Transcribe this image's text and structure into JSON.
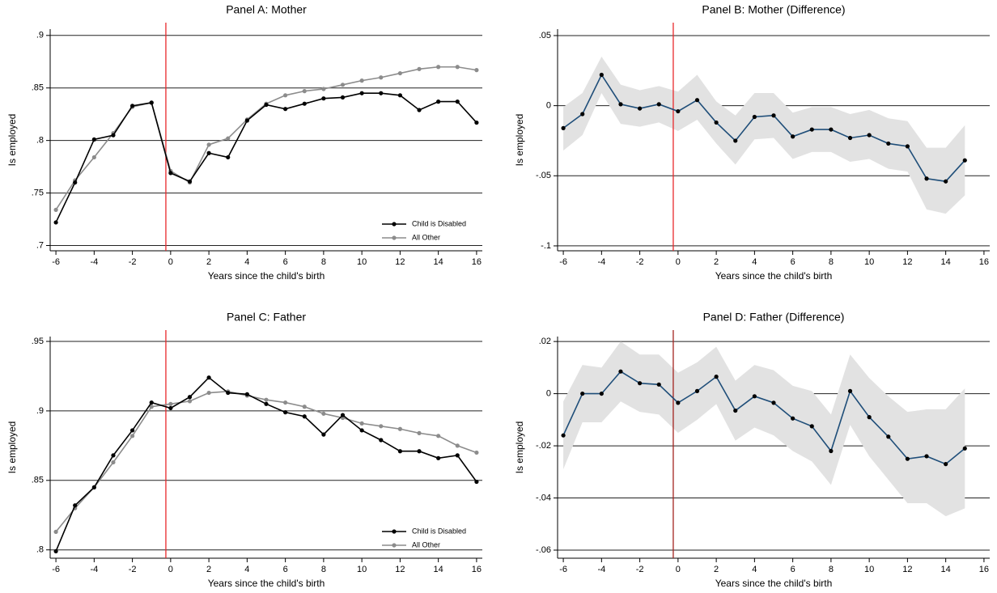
{
  "chart_data": [
    {
      "type": "line",
      "title": "Panel A: Mother",
      "xlabel": "Years since the child's birth",
      "ylabel": "Is employed",
      "x": [
        -6,
        -5,
        -4,
        -3,
        -2,
        -1,
        0,
        1,
        2,
        3,
        4,
        5,
        6,
        7,
        8,
        9,
        10,
        11,
        12,
        13,
        14,
        15,
        16
      ],
      "series": [
        {
          "name": "Child is Disabled",
          "color": "#000000",
          "values": [
            0.722,
            0.76,
            0.801,
            0.805,
            0.833,
            0.836,
            0.769,
            0.761,
            0.788,
            0.784,
            0.819,
            0.834,
            0.83,
            0.835,
            0.84,
            0.841,
            0.845,
            0.845,
            0.843,
            0.829,
            0.837,
            0.837,
            0.817
          ]
        },
        {
          "name": "All Other",
          "color": "#8c8c8c",
          "values": [
            0.734,
            0.762,
            0.784,
            0.807,
            0.832,
            0.836,
            0.771,
            0.76,
            0.796,
            0.802,
            0.82,
            0.835,
            0.843,
            0.847,
            0.849,
            0.853,
            0.857,
            0.86,
            0.864,
            0.868,
            0.87,
            0.87,
            0.867
          ]
        }
      ],
      "xlim": [
        -6.3,
        16.3
      ],
      "xticks": [
        -6,
        -4,
        -2,
        0,
        2,
        4,
        6,
        8,
        10,
        12,
        14,
        16
      ],
      "ylim": [
        0.695,
        0.906
      ],
      "yticks": [
        {
          "value": 0.7,
          "label": ".7"
        },
        {
          "value": 0.75,
          "label": ".75"
        },
        {
          "value": 0.8,
          "label": ".8"
        },
        {
          "value": 0.85,
          "label": ".85"
        },
        {
          "value": 0.9,
          "label": ".9"
        }
      ],
      "vline": -0.25,
      "vline_color": "#e8282b",
      "grid": true,
      "legend": "lower-right"
    },
    {
      "type": "line",
      "title": "Panel B: Mother (Difference)",
      "xlabel": "Years since the child's birth",
      "ylabel": "Is employed",
      "x": [
        -6,
        -5,
        -4,
        -3,
        -2,
        -1,
        0,
        1,
        2,
        3,
        4,
        5,
        6,
        7,
        8,
        9,
        10,
        11,
        12,
        13,
        14,
        15
      ],
      "values": [
        -0.016,
        -0.006,
        0.022,
        0.001,
        -0.002,
        0.001,
        -0.004,
        0.004,
        -0.012,
        -0.025,
        -0.008,
        -0.007,
        -0.022,
        -0.017,
        -0.017,
        -0.023,
        -0.021,
        -0.027,
        -0.029,
        -0.052,
        -0.054,
        -0.039
      ],
      "lower": [
        -0.032,
        -0.021,
        0.009,
        -0.013,
        -0.015,
        -0.012,
        -0.018,
        -0.01,
        -0.027,
        -0.042,
        -0.024,
        -0.023,
        -0.038,
        -0.033,
        -0.033,
        -0.04,
        -0.038,
        -0.045,
        -0.047,
        -0.074,
        -0.077,
        -0.064
      ],
      "upper": [
        -0.001,
        0.009,
        0.035,
        0.015,
        0.011,
        0.014,
        0.01,
        0.022,
        0.003,
        -0.007,
        0.009,
        0.009,
        -0.005,
        -0.001,
        -0.001,
        -0.006,
        -0.003,
        -0.009,
        -0.011,
        -0.03,
        -0.03,
        -0.014
      ],
      "color": "#1f4e79",
      "band_color": "#e2e2e2",
      "xlim": [
        -6.3,
        16.3
      ],
      "xticks": [
        -6,
        -4,
        -2,
        0,
        2,
        4,
        6,
        8,
        10,
        12,
        14,
        16
      ],
      "ylim": [
        -0.1035,
        0.0546
      ],
      "yticks": [
        {
          "value": -0.1,
          "label": "-.1"
        },
        {
          "value": -0.05,
          "label": "-.05"
        },
        0,
        {
          "value": 0.05,
          "label": ".05"
        }
      ],
      "vline": -0.25,
      "vline_color": "#e8282b",
      "grid": true
    },
    {
      "type": "line",
      "title": "Panel C: Father",
      "xlabel": "Years since the child's birth",
      "ylabel": "Is employed",
      "x": [
        -6,
        -5,
        -4,
        -3,
        -2,
        -1,
        0,
        1,
        2,
        3,
        4,
        5,
        6,
        7,
        8,
        9,
        10,
        11,
        12,
        13,
        14,
        15,
        16
      ],
      "series": [
        {
          "name": "Child is Disabled",
          "color": "#000000",
          "values": [
            0.799,
            0.832,
            0.845,
            0.868,
            0.886,
            0.906,
            0.902,
            0.91,
            0.924,
            0.913,
            0.912,
            0.905,
            0.899,
            0.896,
            0.883,
            0.897,
            0.886,
            0.879,
            0.871,
            0.871,
            0.866,
            0.868,
            0.849
          ]
        },
        {
          "name": "All Other",
          "color": "#8c8c8c",
          "values": [
            0.813,
            0.83,
            0.845,
            0.863,
            0.882,
            0.903,
            0.905,
            0.907,
            0.913,
            0.914,
            0.911,
            0.908,
            0.906,
            0.903,
            0.898,
            0.895,
            0.891,
            0.889,
            0.887,
            0.884,
            0.882,
            0.875,
            0.87
          ]
        }
      ],
      "xlim": [
        -6.3,
        16.3
      ],
      "xticks": [
        -6,
        -4,
        -2,
        0,
        2,
        4,
        6,
        8,
        10,
        12,
        14,
        16
      ],
      "ylim": [
        0.794,
        0.9535
      ],
      "yticks": [
        {
          "value": 0.8,
          "label": ".8"
        },
        {
          "value": 0.85,
          "label": ".85"
        },
        {
          "value": 0.9,
          "label": ".9"
        },
        {
          "value": 0.95,
          "label": ".95"
        }
      ],
      "vline": -0.25,
      "vline_color": "#e8282b",
      "grid": true,
      "legend": "lower-right"
    },
    {
      "type": "line",
      "title": "Panel D: Father (Difference)",
      "xlabel": "Years since the child's birth",
      "ylabel": "Is employed",
      "x": [
        -6,
        -5,
        -4,
        -3,
        -2,
        -1,
        0,
        1,
        2,
        3,
        4,
        5,
        6,
        7,
        8,
        9,
        10,
        11,
        12,
        13,
        14,
        15
      ],
      "values": [
        -0.016,
        0,
        0,
        0.0085,
        0.004,
        0.0035,
        -0.0035,
        0.001,
        0.0065,
        -0.0065,
        -0.001,
        -0.0035,
        -0.0095,
        -0.0125,
        -0.022,
        0.001,
        -0.009,
        -0.0165,
        -0.025,
        -0.024,
        -0.027,
        -0.021
      ],
      "lower": [
        -0.029,
        -0.011,
        -0.011,
        -0.003,
        -0.007,
        -0.008,
        -0.015,
        -0.01,
        -0.004,
        -0.018,
        -0.013,
        -0.016,
        -0.022,
        -0.026,
        -0.035,
        -0.012,
        -0.024,
        -0.033,
        -0.042,
        -0.042,
        -0.047,
        -0.044
      ],
      "upper": [
        -0.003,
        0.011,
        0.01,
        0.02,
        0.015,
        0.015,
        0.008,
        0.012,
        0.018,
        0.005,
        0.011,
        0.009,
        0.003,
        0.001,
        -0.008,
        0.015,
        0.006,
        -0.001,
        -0.007,
        -0.006,
        -0.006,
        0.002
      ],
      "color": "#1f4e79",
      "band_color": "#e2e2e2",
      "xlim": [
        -6.3,
        16.3
      ],
      "xticks": [
        -6,
        -4,
        -2,
        0,
        2,
        4,
        6,
        8,
        10,
        12,
        14,
        16
      ],
      "ylim": [
        -0.0631,
        0.0219
      ],
      "yticks": [
        {
          "value": -0.06,
          "label": "-.06"
        },
        {
          "value": -0.04,
          "label": "-.04"
        },
        {
          "value": -0.02,
          "label": "-.02"
        },
        0,
        {
          "value": 0.02,
          "label": ".02"
        }
      ],
      "vline": -0.25,
      "vline_color": "#a3231f",
      "grid": true
    }
  ]
}
